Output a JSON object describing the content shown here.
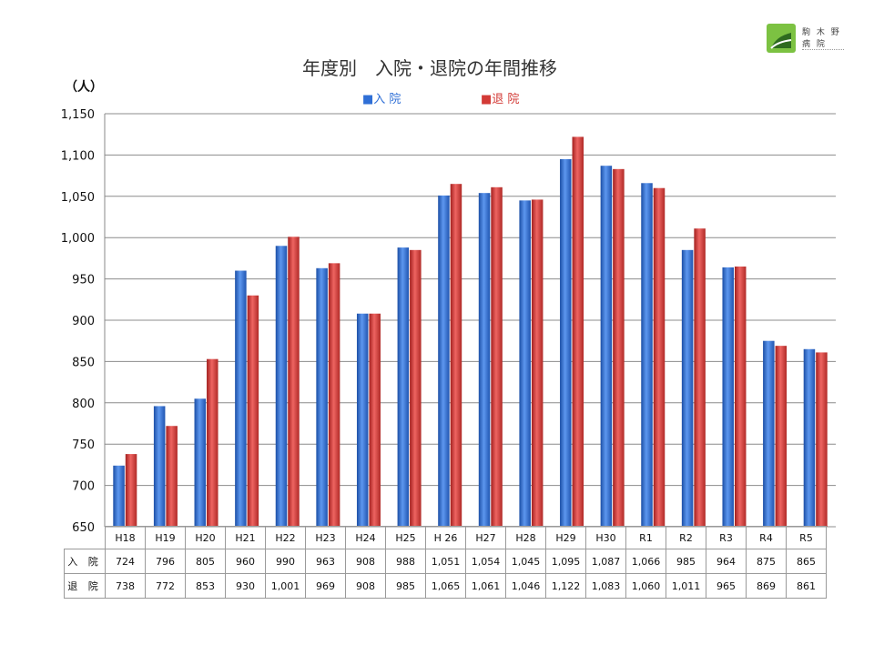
{
  "logo": {
    "line1": "駒 木 野",
    "line2": "病 院"
  },
  "chart_data": {
    "type": "bar",
    "title": "年度別　入院・退院の年間推移",
    "ylabel": "（人）",
    "xlabel": "",
    "ylim": [
      650,
      1150
    ],
    "yticks": [
      650,
      700,
      750,
      800,
      850,
      900,
      950,
      1000,
      1050,
      1100,
      1150
    ],
    "ytick_labels": [
      "650",
      "700",
      "750",
      "800",
      "850",
      "900",
      "950",
      "1,000",
      "1,050",
      "1,100",
      "1,150"
    ],
    "grid": true,
    "legend_position": "top-center",
    "categories": [
      "H18",
      "H19",
      "H20",
      "H21",
      "H22",
      "H23",
      "H24",
      "H25",
      "H 26",
      "H27",
      "H28",
      "H29",
      "H30",
      "R1",
      "R2",
      "R3",
      "R4",
      "R5"
    ],
    "series": [
      {
        "name": "入 院",
        "legend_label": "■入 院",
        "table_label": "入 院",
        "color": "#2f6fd6",
        "values": [
          724,
          796,
          805,
          960,
          990,
          963,
          908,
          988,
          1051,
          1054,
          1045,
          1095,
          1087,
          1066,
          985,
          964,
          875,
          865
        ],
        "table_values": [
          "724",
          "796",
          "805",
          "960",
          "990",
          "963",
          "908",
          "988",
          "1,051",
          "1,054",
          "1,045",
          "1,095",
          "1,087",
          "1,066",
          "985",
          "964",
          "875",
          "865"
        ]
      },
      {
        "name": "退 院",
        "legend_label": "■退 院",
        "table_label": "退 院",
        "color": "#d33a36",
        "values": [
          738,
          772,
          853,
          930,
          1001,
          969,
          908,
          985,
          1065,
          1061,
          1046,
          1122,
          1083,
          1060,
          1011,
          965,
          869,
          861
        ],
        "table_values": [
          "738",
          "772",
          "853",
          "930",
          "1,001",
          "969",
          "908",
          "985",
          "1,065",
          "1,061",
          "1,046",
          "1,122",
          "1,083",
          "1,060",
          "1,011",
          "965",
          "869",
          "861"
        ]
      }
    ]
  }
}
